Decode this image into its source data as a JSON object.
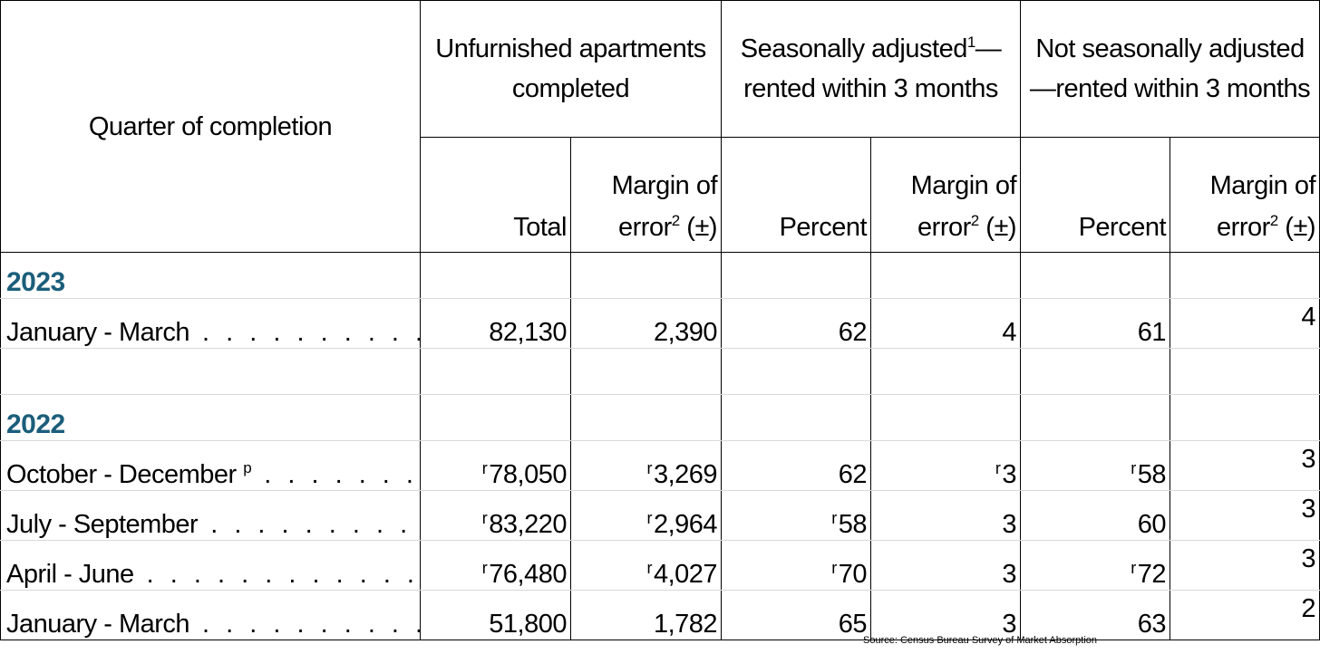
{
  "header": {
    "quarter_label": "Quarter of completion",
    "group_completed": "Unfurnished apartments completed",
    "group_sa_label": "Seasonally adjusted",
    "group_sa_suffix": "—rented within 3 months",
    "group_nsa": "Not seasonally adjusted—rented within 3 months",
    "footnote_1": "1",
    "footnote_2": "2",
    "col_total": "Total",
    "col_moe_line1": "Margin of",
    "col_moe_line2": "error",
    "col_moe_suffix": "(±)",
    "col_percent": "Percent"
  },
  "dots": {
    "jan2023": ". . . . . . . . . . . . . . . .",
    "oct": ". . . . . . . . . . . .",
    "jul": ". . . . . . . . . . . . . . . .",
    "apr": ". . . . . . . . . . . . . . . . . . .",
    "jan2022": ". . . . . . . . . . . . . . . ."
  },
  "rows": {
    "y2023": "2023",
    "jan2023": {
      "label": "January - March",
      "total": "82,130",
      "total_moe": "2,390",
      "sa_pct": "62",
      "sa_moe": "4",
      "nsa_pct": "61",
      "nsa_moe": "4"
    },
    "y2022": "2022",
    "oct2022": {
      "label": "October - December",
      "label_mark": "p",
      "total": "78,050",
      "total_moe": "3,269",
      "sa_pct": "62",
      "sa_moe": "3",
      "nsa_pct": "58",
      "nsa_moe": "3"
    },
    "jul2022": {
      "label": "July - September",
      "total": "83,220",
      "total_moe": "2,964",
      "sa_pct": "58",
      "sa_moe": "3",
      "nsa_pct": "60",
      "nsa_moe": "3"
    },
    "apr2022": {
      "label": "April - June",
      "total": "76,480",
      "total_moe": "4,027",
      "sa_pct": "70",
      "sa_moe": "3",
      "nsa_pct": "72",
      "nsa_moe": "3"
    },
    "jan2022": {
      "label": "January - March",
      "total": "51,800",
      "total_moe": "1,782",
      "sa_pct": "65",
      "sa_moe": "3",
      "nsa_pct": "63",
      "nsa_moe": "2"
    }
  },
  "revised_mark": "r",
  "source": "Source: Census Bureau Survey of Market Absorption"
}
